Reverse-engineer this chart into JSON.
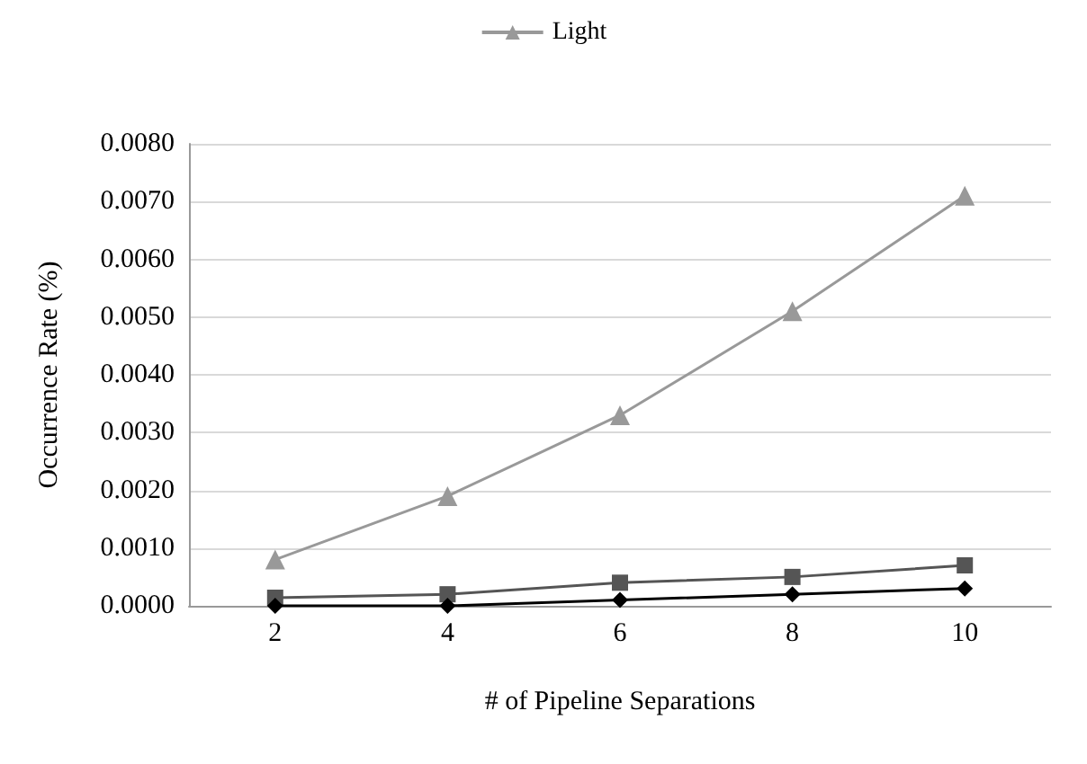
{
  "chart_data": {
    "type": "line",
    "xlabel": "# of Pipeline Separations",
    "ylabel": "Occurrence Rate (%)",
    "categories": [
      "2",
      "4",
      "6",
      "8",
      "10"
    ],
    "series": [
      {
        "color": "#000000",
        "marker": "diamond",
        "values": [
          0,
          0,
          0.0001,
          0.0002,
          0.0003
        ]
      },
      {
        "color": "#555555",
        "marker": "square",
        "values": [
          0.00014,
          0.0002,
          0.0004,
          0.0005,
          0.0007
        ]
      },
      {
        "name": "Light",
        "color": "#999999",
        "marker": "triangle",
        "values": [
          0.0008,
          0.0019,
          0.0033,
          0.0051,
          0.0071
        ]
      }
    ],
    "ylim": [
      0,
      0.008
    ],
    "yticks": [
      {
        "value": 0,
        "label": "0.0000"
      },
      {
        "value": 0.001,
        "label": "0.0010"
      },
      {
        "value": 0.002,
        "label": "0.0020"
      },
      {
        "value": 0.003,
        "label": "0.0030"
      },
      {
        "value": 0.004,
        "label": "0.0040"
      },
      {
        "value": 0.005,
        "label": "0.0050"
      },
      {
        "value": 0.006,
        "label": "0.0060"
      },
      {
        "value": 0.007,
        "label": "0.0070"
      },
      {
        "value": 0.008,
        "label": "0.0080"
      }
    ],
    "grid": "y",
    "legend": "top"
  }
}
